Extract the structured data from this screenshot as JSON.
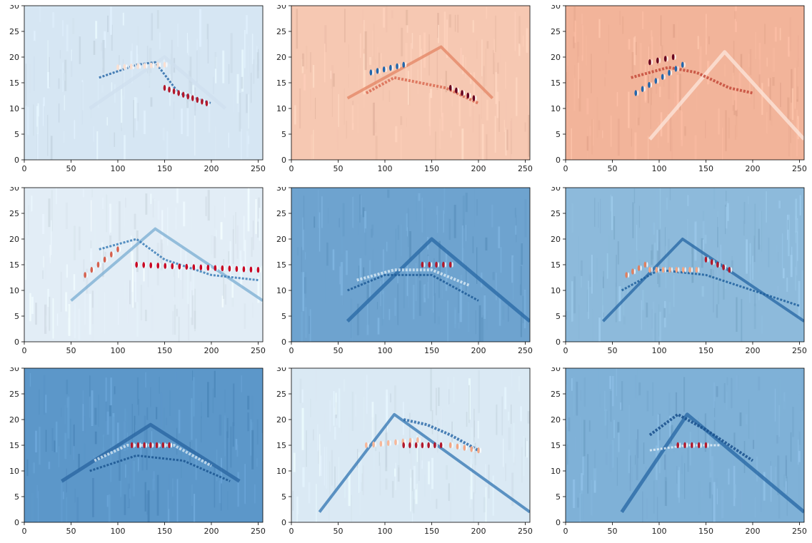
{
  "chart_data": [
    {
      "type": "heatmap",
      "xlim": [
        0,
        255
      ],
      "ylim": [
        0,
        30
      ],
      "xticks": [
        0,
        50,
        100,
        150,
        200,
        250
      ],
      "yticks": [
        0,
        5,
        10,
        15,
        20,
        25,
        30
      ],
      "colormap": "RdBu_r",
      "background_color": "#d6e6f3",
      "features": [
        {
          "kind": "arc",
          "x0": 70,
          "x1": 215,
          "peak_x": 150,
          "peak_y": 20,
          "end_y": 10,
          "color": "#cfe0ef",
          "width": 5
        },
        {
          "kind": "band",
          "points": [
            [
              80,
              16
            ],
            [
              120,
              18.5
            ],
            [
              140,
              19
            ],
            [
              165,
              13
            ],
            [
              200,
              11
            ]
          ],
          "color": "#2c6aa8",
          "width": 3
        },
        {
          "kind": "oscillation",
          "points": [
            [
              100,
              18
            ],
            [
              150,
              18.5
            ]
          ],
          "n": 8,
          "color": "#fbe0d2"
        },
        {
          "kind": "oscillation",
          "points": [
            [
              150,
              14
            ],
            [
              195,
              11
            ]
          ],
          "n": 10,
          "color": "#b2182b"
        }
      ]
    },
    {
      "type": "heatmap",
      "xlim": [
        0,
        255
      ],
      "ylim": [
        0,
        30
      ],
      "xticks": [
        0,
        50,
        100,
        150,
        200,
        250
      ],
      "yticks": [
        0,
        5,
        10,
        15,
        20,
        25,
        30
      ],
      "colormap": "RdBu_r",
      "background_color": "#f6c8b2",
      "features": [
        {
          "kind": "arc",
          "x0": 60,
          "x1": 215,
          "peak_x": 160,
          "peak_y": 22,
          "end_y": 12,
          "color": "#e58868",
          "width": 4
        },
        {
          "kind": "band",
          "points": [
            [
              80,
              13
            ],
            [
              110,
              16
            ],
            [
              165,
              14
            ],
            [
              200,
              11
            ]
          ],
          "color": "#d96b52",
          "width": 4
        },
        {
          "kind": "oscillation",
          "points": [
            [
              85,
              17
            ],
            [
              120,
              18.5
            ]
          ],
          "n": 6,
          "color": "#2166ac"
        },
        {
          "kind": "oscillation",
          "points": [
            [
              170,
              14
            ],
            [
              195,
              12
            ]
          ],
          "n": 5,
          "color": "#67001f"
        }
      ]
    },
    {
      "type": "heatmap",
      "xlim": [
        0,
        255
      ],
      "ylim": [
        0,
        30
      ],
      "xticks": [
        0,
        50,
        100,
        150,
        200,
        250
      ],
      "yticks": [
        0,
        5,
        10,
        15,
        20,
        25,
        30
      ],
      "colormap": "RdBu_r",
      "background_color": "#f2b49a",
      "features": [
        {
          "kind": "arc",
          "x0": 90,
          "x1": 255,
          "peak_x": 170,
          "peak_y": 21,
          "end_y": 4,
          "color": "#fbe4d8",
          "width": 5
        },
        {
          "kind": "band",
          "points": [
            [
              70,
              16
            ],
            [
              110,
              18
            ],
            [
              140,
              17
            ],
            [
              175,
              14
            ],
            [
              200,
              13
            ]
          ],
          "color": "#c44a3a",
          "width": 4
        },
        {
          "kind": "oscillation",
          "points": [
            [
              75,
              13
            ],
            [
              125,
              18.5
            ]
          ],
          "n": 8,
          "color": "#2166ac"
        },
        {
          "kind": "oscillation",
          "points": [
            [
              90,
              19
            ],
            [
              115,
              20
            ]
          ],
          "n": 4,
          "color": "#67001f"
        }
      ]
    },
    {
      "type": "heatmap",
      "xlim": [
        0,
        255
      ],
      "ylim": [
        0,
        30
      ],
      "xticks": [
        0,
        50,
        100,
        150,
        200,
        250
      ],
      "yticks": [
        0,
        5,
        10,
        15,
        20,
        25,
        30
      ],
      "colormap": "RdBu_r",
      "background_color": "#e2edf6",
      "features": [
        {
          "kind": "arc",
          "x0": 50,
          "x1": 255,
          "peak_x": 140,
          "peak_y": 22,
          "end_y": 8,
          "color": "#7fb0d5",
          "width": 4
        },
        {
          "kind": "band",
          "points": [
            [
              80,
              18
            ],
            [
              120,
              20
            ],
            [
              150,
              16
            ],
            [
              200,
              13
            ],
            [
              250,
              12
            ]
          ],
          "color": "#3b7cb6",
          "width": 3
        },
        {
          "kind": "oscillation",
          "points": [
            [
              65,
              13
            ],
            [
              100,
              18
            ]
          ],
          "n": 6,
          "color": "#d6604d"
        },
        {
          "kind": "oscillation",
          "points": [
            [
              120,
              15
            ],
            [
              250,
              14
            ]
          ],
          "n": 18,
          "color": "#ca0020"
        }
      ]
    },
    {
      "type": "heatmap",
      "xlim": [
        0,
        255
      ],
      "ylim": [
        0,
        30
      ],
      "xticks": [
        0,
        50,
        100,
        150,
        200,
        250
      ],
      "yticks": [
        0,
        5,
        10,
        15,
        20,
        25,
        30
      ],
      "colormap": "RdBu_r",
      "background_color": "#6ea3cf",
      "features": [
        {
          "kind": "arc",
          "x0": 60,
          "x1": 255,
          "peak_x": 150,
          "peak_y": 20,
          "end_y": 4,
          "color": "#2b6aa6",
          "width": 5
        },
        {
          "kind": "band",
          "points": [
            [
              70,
              12
            ],
            [
              110,
              14
            ],
            [
              150,
              14
            ],
            [
              190,
              11
            ]
          ],
          "color": "#d6e7f3",
          "width": 4
        },
        {
          "kind": "band",
          "points": [
            [
              60,
              10
            ],
            [
              100,
              13
            ],
            [
              150,
              13
            ],
            [
              200,
              8
            ]
          ],
          "color": "#1d5b97",
          "width": 3
        },
        {
          "kind": "oscillation",
          "points": [
            [
              140,
              15
            ],
            [
              170,
              15
            ]
          ],
          "n": 5,
          "color": "#b2182b"
        }
      ]
    },
    {
      "type": "heatmap",
      "xlim": [
        0,
        255
      ],
      "ylim": [
        0,
        30
      ],
      "xticks": [
        0,
        50,
        100,
        150,
        200,
        250
      ],
      "yticks": [
        0,
        5,
        10,
        15,
        20,
        25,
        30
      ],
      "colormap": "RdBu_r",
      "background_color": "#8dbadb",
      "features": [
        {
          "kind": "arc",
          "x0": 40,
          "x1": 255,
          "peak_x": 125,
          "peak_y": 20,
          "end_y": 4,
          "color": "#2b6aa6",
          "width": 4
        },
        {
          "kind": "band",
          "points": [
            [
              60,
              10
            ],
            [
              100,
              14
            ],
            [
              150,
              13
            ],
            [
              200,
              10
            ],
            [
              250,
              7
            ]
          ],
          "color": "#1f5f9c",
          "width": 3
        },
        {
          "kind": "oscillation",
          "points": [
            [
              65,
              13
            ],
            [
              85,
              15
            ]
          ],
          "n": 4,
          "color": "#e08060"
        },
        {
          "kind": "oscillation",
          "points": [
            [
              90,
              14
            ],
            [
              140,
              14
            ]
          ],
          "n": 8,
          "color": "#f4a582"
        },
        {
          "kind": "oscillation",
          "points": [
            [
              150,
              16
            ],
            [
              175,
              14
            ]
          ],
          "n": 5,
          "color": "#b2182b"
        }
      ]
    },
    {
      "type": "heatmap",
      "xlim": [
        0,
        255
      ],
      "ylim": [
        0,
        30
      ],
      "xticks": [
        0,
        50,
        100,
        150,
        200,
        250
      ],
      "yticks": [
        0,
        5,
        10,
        15,
        20,
        25,
        30
      ],
      "colormap": "RdBu_r",
      "background_color": "#5c97c9",
      "features": [
        {
          "kind": "arc",
          "x0": 40,
          "x1": 230,
          "peak_x": 135,
          "peak_y": 19,
          "end_y": 8,
          "color": "#2a66a3",
          "width": 5
        },
        {
          "kind": "band",
          "points": [
            [
              75,
              12
            ],
            [
              110,
              15
            ],
            [
              160,
              15
            ],
            [
              200,
              11
            ]
          ],
          "color": "#cfe2f0",
          "width": 4
        },
        {
          "kind": "band",
          "points": [
            [
              70,
              10
            ],
            [
              120,
              13
            ],
            [
              170,
              12
            ],
            [
              220,
              8
            ]
          ],
          "color": "#1a5590",
          "width": 3
        },
        {
          "kind": "oscillation",
          "points": [
            [
              115,
              15
            ],
            [
              155,
              15
            ]
          ],
          "n": 7,
          "color": "#b2182b"
        }
      ]
    },
    {
      "type": "heatmap",
      "xlim": [
        0,
        255
      ],
      "ylim": [
        0,
        30
      ],
      "xticks": [
        0,
        50,
        100,
        150,
        200,
        250
      ],
      "yticks": [
        0,
        5,
        10,
        15,
        20,
        25,
        30
      ],
      "colormap": "RdBu_r",
      "background_color": "#dae9f4",
      "features": [
        {
          "kind": "arc",
          "x0": 30,
          "x1": 255,
          "peak_x": 110,
          "peak_y": 21,
          "end_y": 2,
          "color": "#3a7bb5",
          "width": 4
        },
        {
          "kind": "band",
          "points": [
            [
              120,
              20
            ],
            [
              145,
              19
            ],
            [
              170,
              17
            ],
            [
              200,
              14
            ]
          ],
          "color": "#2c6aa8",
          "width": 4
        },
        {
          "kind": "oscillation",
          "points": [
            [
              80,
              15
            ],
            [
              135,
              16
            ]
          ],
          "n": 8,
          "color": "#f7b799"
        },
        {
          "kind": "oscillation",
          "points": [
            [
              120,
              15
            ],
            [
              160,
              15
            ]
          ],
          "n": 7,
          "color": "#b2182b"
        },
        {
          "kind": "oscillation",
          "points": [
            [
              170,
              15
            ],
            [
              200,
              14
            ]
          ],
          "n": 5,
          "color": "#f4a582"
        }
      ]
    },
    {
      "type": "heatmap",
      "xlim": [
        0,
        255
      ],
      "ylim": [
        0,
        30
      ],
      "xticks": [
        0,
        50,
        100,
        150,
        200,
        250
      ],
      "yticks": [
        0,
        5,
        10,
        15,
        20,
        25,
        30
      ],
      "colormap": "RdBu_r",
      "background_color": "#7fb1d7",
      "features": [
        {
          "kind": "arc",
          "x0": 60,
          "x1": 255,
          "peak_x": 130,
          "peak_y": 21,
          "end_y": 2,
          "color": "#2a6aa6",
          "width": 5
        },
        {
          "kind": "band",
          "points": [
            [
              90,
              17
            ],
            [
              120,
              21
            ],
            [
              150,
              18
            ],
            [
              200,
              12
            ]
          ],
          "color": "#174f8c",
          "width": 4
        },
        {
          "kind": "band",
          "points": [
            [
              90,
              14
            ],
            [
              130,
              15
            ],
            [
              165,
              15
            ]
          ],
          "color": "#e3eef7",
          "width": 3
        },
        {
          "kind": "oscillation",
          "points": [
            [
              120,
              15
            ],
            [
              150,
              15
            ]
          ],
          "n": 5,
          "color": "#b2182b"
        }
      ]
    }
  ]
}
